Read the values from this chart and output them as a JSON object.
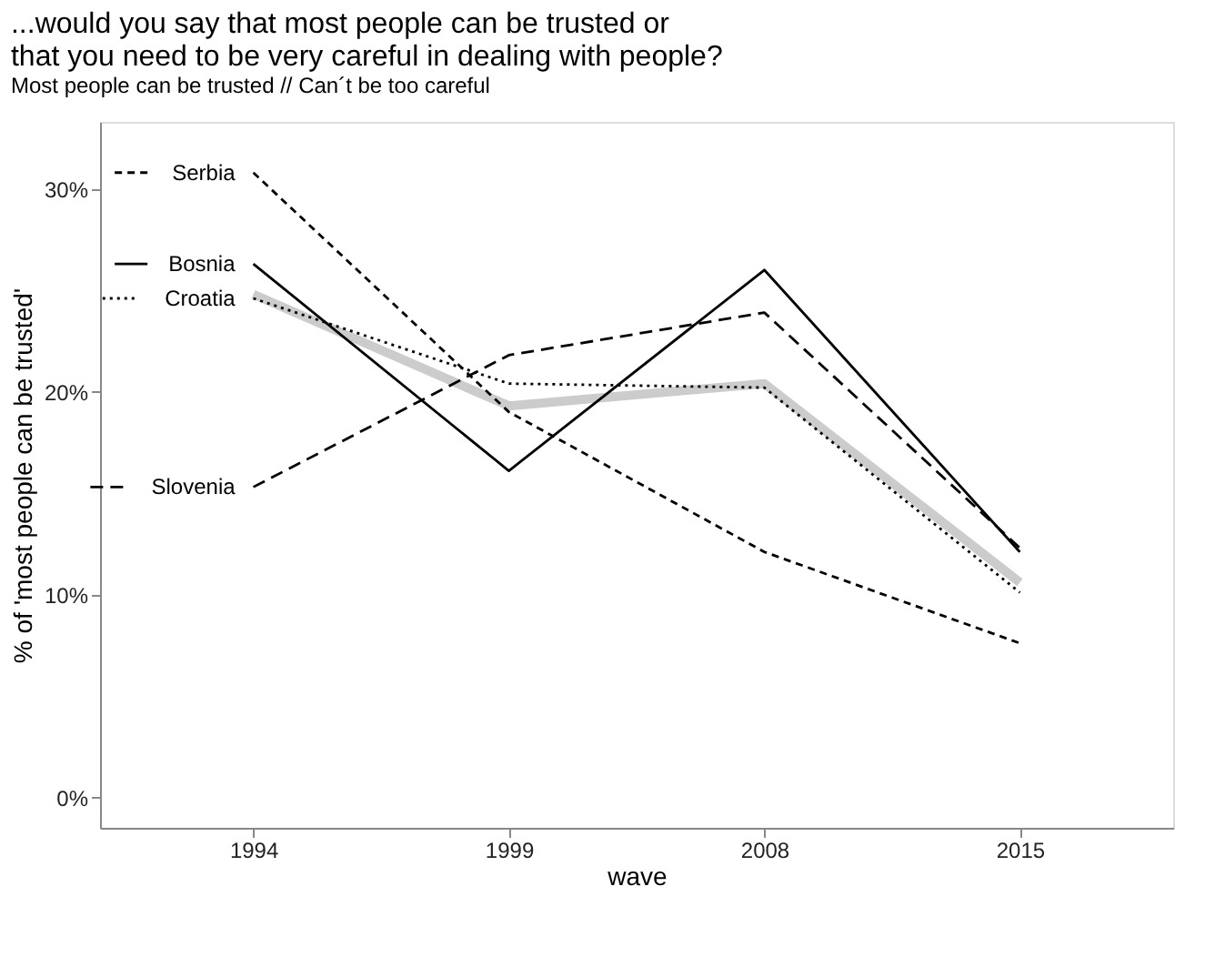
{
  "chart_data": {
    "type": "line",
    "title": "...would you say that most people can be trusted or\nthat you need to be very careful in dealing with people?",
    "subtitle": "Most people can be trusted // Can´t be too careful",
    "xlabel": "wave",
    "ylabel": "% of 'most people can be trusted'",
    "categories": [
      "1994",
      "1999",
      "2008",
      "2015"
    ],
    "series": [
      {
        "color": "#cccccc",
        "line_style": "solid",
        "values": [
          24.8,
          19.3,
          20.4,
          10.6
        ]
      },
      {
        "name": "Serbia",
        "color": "#000000",
        "line_style": "dashed",
        "values": [
          30.8,
          19.0,
          12.1,
          7.6
        ]
      },
      {
        "name": "Bosnia",
        "color": "#000000",
        "line_style": "solid",
        "values": [
          26.3,
          16.1,
          26.0,
          12.1
        ]
      },
      {
        "name": "Croatia",
        "color": "#000000",
        "line_style": "dotted",
        "values": [
          24.6,
          20.4,
          20.2,
          10.1
        ]
      },
      {
        "name": "Slovenia",
        "color": "#000000",
        "line_style": "longdash",
        "values": [
          15.3,
          21.8,
          23.9,
          12.3
        ]
      }
    ],
    "ylim": [
      -1.5,
      33.3
    ],
    "yticks": [
      {
        "value": 0,
        "label": "0%"
      },
      {
        "value": 10,
        "label": "10%"
      },
      {
        "value": 20,
        "label": "20%"
      },
      {
        "value": 30,
        "label": "30%"
      }
    ],
    "legend": "left",
    "grid": false,
    "marker": "none"
  }
}
